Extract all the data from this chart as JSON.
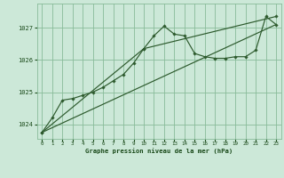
{
  "bg_color": "#cce8d8",
  "grid_color": "#88bb99",
  "line_color": "#2d5a2d",
  "text_color": "#1a4a1a",
  "xlabel": "Graphe pression niveau de la mer (hPa)",
  "xlim": [
    -0.5,
    23.5
  ],
  "ylim": [
    1023.55,
    1027.75
  ],
  "yticks": [
    1024,
    1025,
    1026,
    1027
  ],
  "xticks": [
    0,
    1,
    2,
    3,
    4,
    5,
    6,
    7,
    8,
    9,
    10,
    11,
    12,
    13,
    14,
    15,
    16,
    17,
    18,
    19,
    20,
    21,
    22,
    23
  ],
  "series1_x": [
    0,
    1,
    2,
    3,
    4,
    5,
    6,
    7,
    8,
    9,
    10,
    11,
    12,
    13,
    14,
    15,
    16,
    17,
    18,
    19,
    20,
    21,
    22,
    23
  ],
  "series1_y": [
    1023.75,
    1024.2,
    1024.75,
    1024.8,
    1024.9,
    1025.0,
    1025.15,
    1025.35,
    1025.55,
    1025.9,
    1026.35,
    1026.75,
    1027.05,
    1026.8,
    1026.75,
    1026.2,
    1026.1,
    1026.05,
    1026.05,
    1026.1,
    1026.1,
    1026.3,
    1027.35,
    1027.1
  ],
  "series2_x": [
    0,
    23
  ],
  "series2_y": [
    1023.75,
    1027.1
  ],
  "series3_x": [
    0,
    10,
    23
  ],
  "series3_y": [
    1023.75,
    1026.35,
    1027.35
  ],
  "figsize": [
    3.2,
    2.0
  ],
  "dpi": 100
}
